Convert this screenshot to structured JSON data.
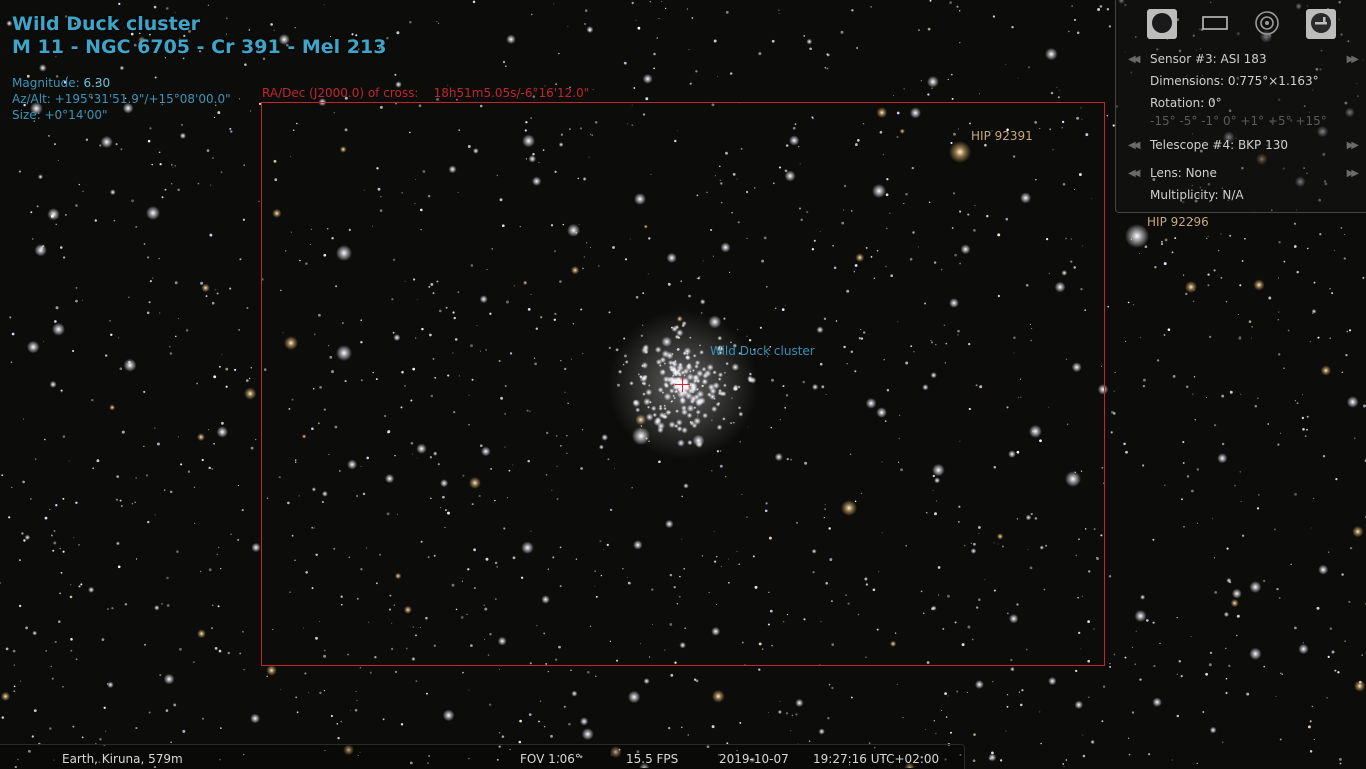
{
  "object": {
    "name": "Wild Duck cluster",
    "designations": "M 11 - NGC 6705 - Cr 391 - Mel 213",
    "magnitude_label": "Magnitude:",
    "magnitude_value": "6.30",
    "azalt": "Az/Alt: +195°31'51.9\"/+15°08'00.0\"",
    "size": "Size: +0°14'00\""
  },
  "cross_readout": "RA/Dec (J2000.0) of cross:    18h51m5.05s/-6°16'12.0\"",
  "labels": {
    "hip_92391": "HIP 92391",
    "hip_92296": "HIP 92296",
    "cluster": "Wild Duck cluster"
  },
  "ocular_panel": {
    "sensor": "Sensor #3: ASI 183",
    "dimensions": "Dimensions: 0.775°×1.163°",
    "rotation": "Rotation: 0°",
    "rotation_steps": "-15° -5° -1° 0° +1° +5° +15°",
    "telescope": "Telescope #4: BKP 130",
    "lens": "Lens: None",
    "multiplicity": "Multiplicity: N/A",
    "tools": [
      "ocular-toggle-icon",
      "sensor-frame-icon",
      "telrad-icon",
      "config-icon"
    ]
  },
  "status_bar": {
    "location": "Earth, Kiruna, 579m",
    "fov": "FOV 1.06°",
    "fps": "15.5 FPS",
    "date": "2019-10-07",
    "time": "19:27:16 UTC+02:00"
  },
  "colors": {
    "info_text": "#3fa5c8",
    "frame_red": "#c0262c",
    "star_label": "#c8a878"
  }
}
